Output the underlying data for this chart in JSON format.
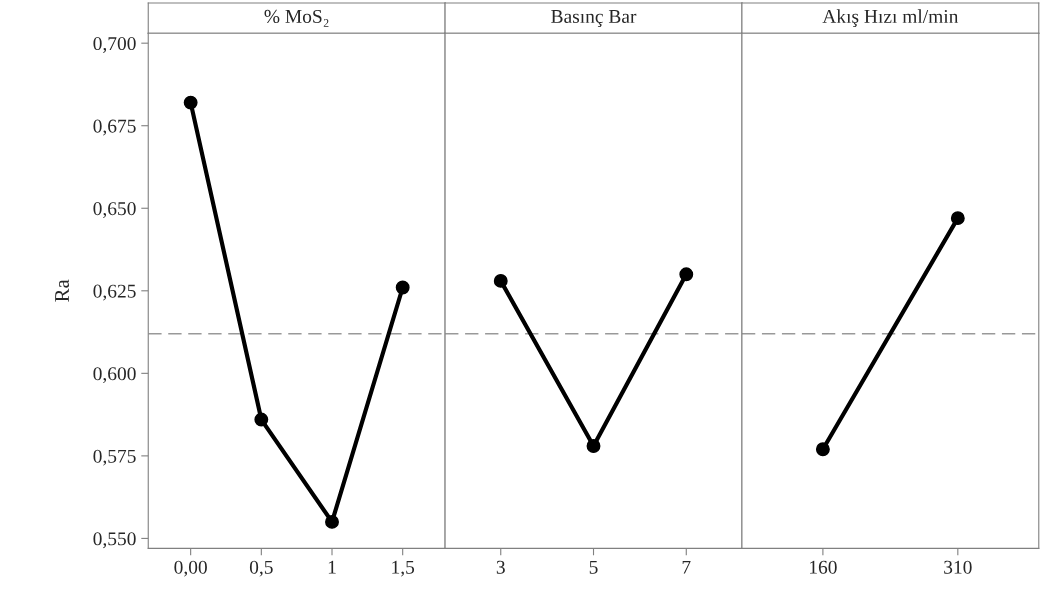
{
  "chart_data": [
    {
      "type": "line",
      "title": "% MoS₂",
      "ylabel": "Ra",
      "categories": [
        "0,00",
        "0,5",
        "1",
        "1,5"
      ],
      "series": [
        {
          "color": "#000000",
          "values": [
            0.682,
            0.586,
            0.555,
            0.626
          ]
        }
      ],
      "ylim": [
        0.547,
        0.703
      ],
      "yticks": [
        {
          "value": 0.55,
          "label": "0,550"
        },
        {
          "value": 0.575,
          "label": "0,575"
        },
        {
          "value": 0.6,
          "label": "0,600"
        },
        {
          "value": 0.625,
          "label": "0,625"
        },
        {
          "value": 0.65,
          "label": "0,650"
        },
        {
          "value": 0.675,
          "label": "0,675"
        },
        {
          "value": 0.7,
          "label": "0,700"
        }
      ],
      "ref_lines": [
        {
          "axis": "y",
          "value": 0.612,
          "color": "#999999",
          "line_style": "dashed"
        }
      ],
      "marker": "circle",
      "grid": false,
      "legend": false
    },
    {
      "type": "line",
      "title": "Basınç Bar",
      "categories": [
        "3",
        "5",
        "7"
      ],
      "series": [
        {
          "color": "#000000",
          "values": [
            0.628,
            0.578,
            0.63
          ]
        }
      ],
      "ylim": [
        0.547,
        0.703
      ],
      "tick_labels": "x",
      "ref_lines": [
        {
          "axis": "y",
          "value": 0.612,
          "color": "#999999",
          "line_style": "dashed"
        }
      ],
      "marker": "circle",
      "grid": false,
      "legend": false
    },
    {
      "type": "line",
      "title": "Akış Hızı ml/min",
      "categories": [
        "160",
        "310"
      ],
      "series": [
        {
          "color": "#000000",
          "values": [
            0.577,
            0.647
          ]
        }
      ],
      "ylim": [
        0.547,
        0.703
      ],
      "tick_labels": "x",
      "ref_lines": [
        {
          "axis": "y",
          "value": 0.612,
          "color": "#999999",
          "line_style": "dashed"
        }
      ],
      "marker": "circle",
      "grid": false,
      "legend": false
    }
  ]
}
